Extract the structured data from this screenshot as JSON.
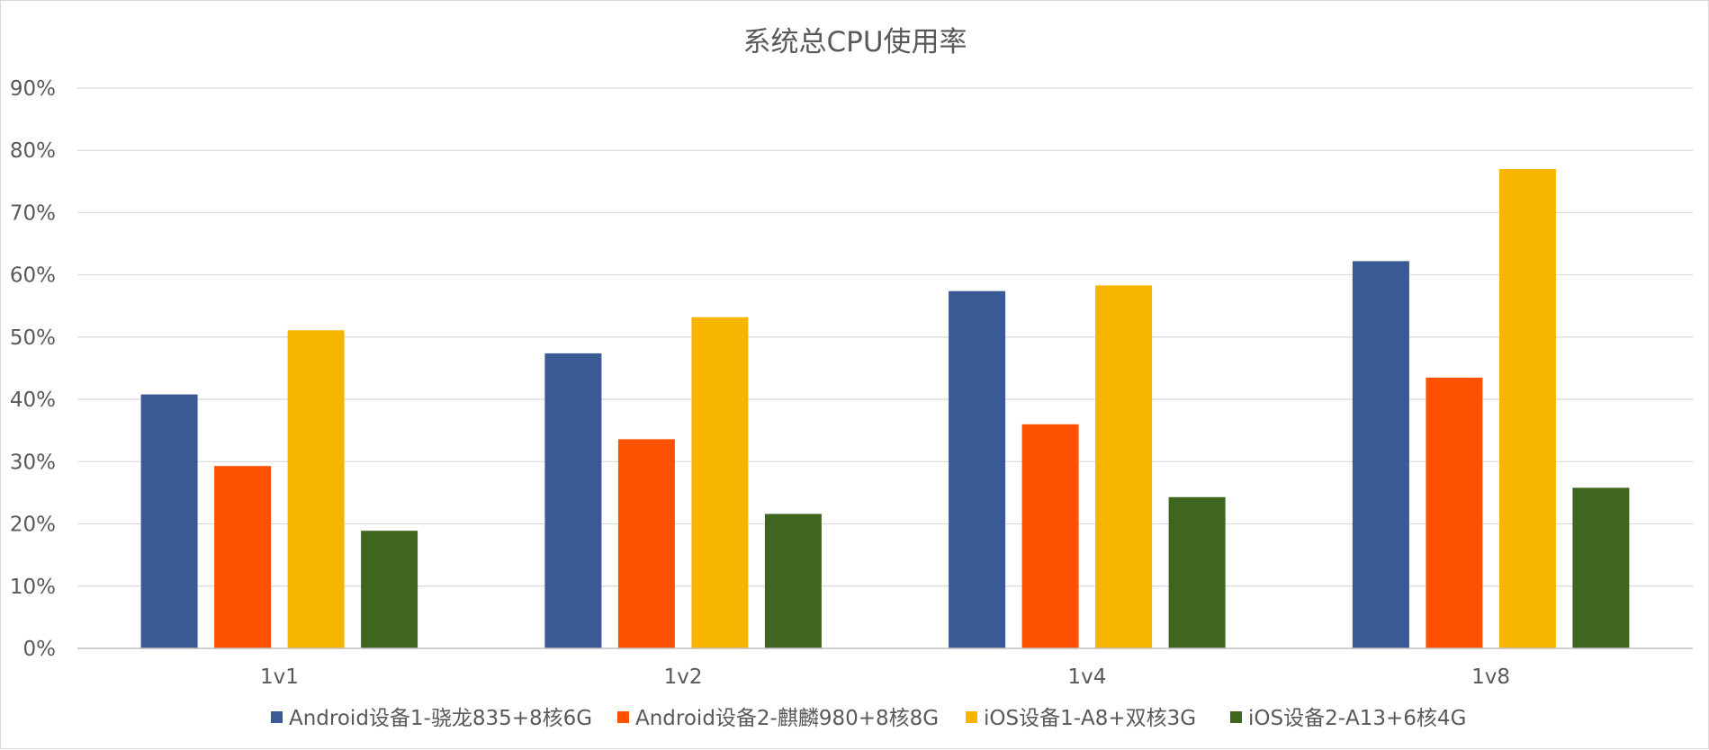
{
  "chart_data": {
    "type": "bar",
    "title": "系统总CPU使用率",
    "xlabel": "",
    "ylabel": "",
    "categories": [
      "1v1",
      "1v2",
      "1v4",
      "1v8"
    ],
    "y_tick_labels": [
      "0%",
      "10%",
      "20%",
      "30%",
      "40%",
      "50%",
      "60%",
      "70%",
      "80%",
      "90%"
    ],
    "ylim": [
      0,
      90
    ],
    "y_unit": "%",
    "grid": true,
    "legend_position": "bottom",
    "series": [
      {
        "name": "Android设备1-骁龙835+8核6G",
        "color": "#3a5a95",
        "values": [
          40.8,
          47.4,
          57.4,
          62.2
        ]
      },
      {
        "name": "Android设备2-麒麟980+8核8G",
        "color": "#ff5200",
        "values": [
          29.3,
          33.6,
          36.0,
          43.5
        ]
      },
      {
        "name": "iOS设备1-A8+双核3G",
        "color": "#f7b500",
        "values": [
          51.1,
          53.2,
          58.3,
          77.0
        ]
      },
      {
        "name": "iOS设备2-A13+6核4G",
        "color": "#3e661e",
        "values": [
          18.9,
          21.6,
          24.3,
          25.8
        ]
      }
    ]
  }
}
